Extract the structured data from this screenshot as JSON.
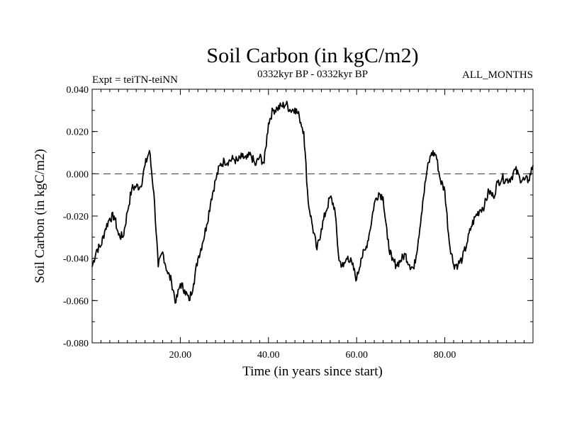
{
  "chart_data": {
    "type": "line",
    "title": "Soil Carbon (in kgC/m2)",
    "subtitle_left": "Expt = teiTN-teiNN",
    "subtitle_center": "0332kyr BP - 0332kyr BP",
    "subtitle_right": "ALL_MONTHS",
    "xlabel": "Time (in years since start)",
    "ylabel": "Soil Carbon (in kgC/m2)",
    "xlim": [
      0,
      100
    ],
    "ylim": [
      -0.08,
      0.04
    ],
    "x_ticks": [
      20,
      40,
      60,
      80
    ],
    "x_tick_labels": [
      "20.00",
      "40.00",
      "60.00",
      "80.00"
    ],
    "y_ticks": [
      -0.08,
      -0.06,
      -0.04,
      -0.02,
      0.0,
      0.02,
      0.04
    ],
    "y_tick_labels": [
      "-0.080",
      "-0.060",
      "-0.040",
      "-0.020",
      "0.000",
      "0.020",
      "0.040"
    ],
    "reference_line": {
      "y": 0.0,
      "style": "dashed"
    },
    "series": [
      {
        "name": "Soil Carbon",
        "x": [
          0,
          1,
          2,
          3,
          4,
          5,
          6,
          7,
          8,
          9,
          10,
          11,
          12,
          13,
          14,
          15,
          16,
          17,
          18,
          19,
          20,
          21,
          22,
          23,
          24,
          25,
          26,
          27,
          28,
          29,
          30,
          31,
          32,
          33,
          34,
          35,
          36,
          37,
          38,
          39,
          40,
          41,
          42,
          43,
          44,
          45,
          46,
          47,
          48,
          49,
          50,
          51,
          52,
          53,
          54,
          55,
          56,
          57,
          58,
          59,
          60,
          61,
          62,
          63,
          64,
          65,
          66,
          67,
          68,
          69,
          70,
          71,
          72,
          73,
          74,
          75,
          76,
          77,
          78,
          79,
          80,
          81,
          82,
          83,
          84,
          85,
          86,
          87,
          88,
          89,
          90,
          91,
          92,
          93,
          94,
          95,
          96,
          97,
          98,
          99,
          100
        ],
        "values": [
          -0.044,
          -0.036,
          -0.034,
          -0.026,
          -0.021,
          -0.02,
          -0.029,
          -0.03,
          -0.018,
          -0.007,
          -0.006,
          -0.006,
          0.004,
          0.011,
          -0.009,
          -0.044,
          -0.037,
          -0.046,
          -0.051,
          -0.061,
          -0.052,
          -0.055,
          -0.06,
          -0.052,
          -0.04,
          -0.033,
          -0.024,
          -0.012,
          -0.003,
          0.004,
          0.006,
          0.006,
          0.007,
          0.006,
          0.008,
          0.007,
          0.009,
          0.004,
          0.008,
          0.005,
          0.024,
          0.03,
          0.031,
          0.032,
          0.033,
          0.03,
          0.031,
          0.027,
          0.02,
          -0.013,
          -0.025,
          -0.036,
          -0.026,
          -0.018,
          -0.011,
          -0.016,
          -0.041,
          -0.044,
          -0.039,
          -0.043,
          -0.05,
          -0.04,
          -0.036,
          -0.027,
          -0.014,
          -0.009,
          -0.011,
          -0.031,
          -0.041,
          -0.043,
          -0.041,
          -0.038,
          -0.043,
          -0.045,
          -0.031,
          -0.013,
          0.002,
          0.01,
          0.009,
          -0.003,
          -0.008,
          -0.032,
          -0.043,
          -0.043,
          -0.04,
          -0.033,
          -0.025,
          -0.02,
          -0.017,
          -0.015,
          -0.008,
          -0.011,
          -0.004,
          -0.002,
          -0.003,
          -0.002,
          0.002,
          -0.002,
          -0.003,
          -0.003,
          0.004
        ]
      }
    ]
  }
}
